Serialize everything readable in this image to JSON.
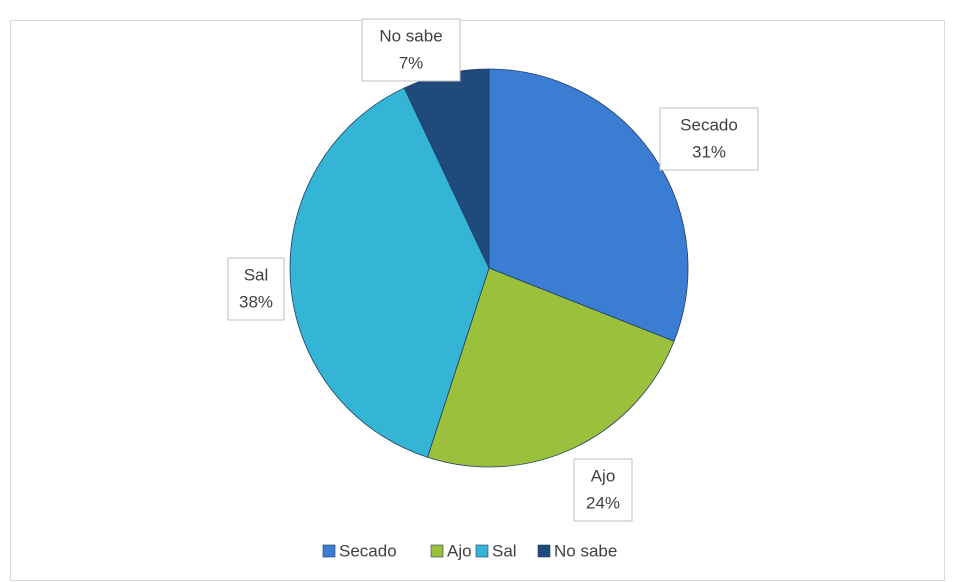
{
  "chart_data": {
    "type": "pie",
    "categories": [
      "Secado",
      "Ajo",
      "Sal",
      "No sabe"
    ],
    "values": [
      31,
      24,
      38,
      7
    ],
    "value_labels": [
      "31%",
      "24%",
      "38%",
      "7%"
    ],
    "colors": [
      "#3b7dd3",
      "#9bc03b",
      "#34b5d6",
      "#1f4a7c"
    ],
    "legend": "bottom"
  }
}
